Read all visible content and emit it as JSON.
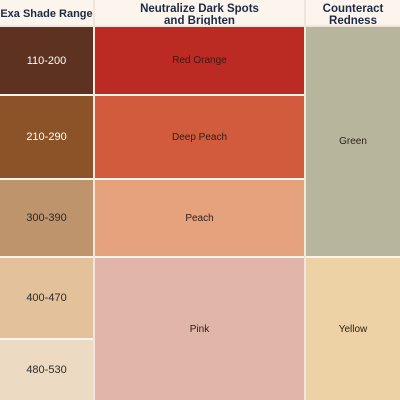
{
  "headers": {
    "shade": "Exa Shade Range",
    "neutralize": "Neutralize Dark Spots and Brighten",
    "counteract": "Counteract Redness"
  },
  "shade_ranges": [
    {
      "label": "110-200",
      "color": "#5d3220"
    },
    {
      "label": "210-290",
      "color": "#8b5327"
    },
    {
      "label": "300-390",
      "color": "#bd946b"
    },
    {
      "label": "400-470",
      "color": "#e3c29b"
    },
    {
      "label": "480-530",
      "color": "#ecdbc2"
    }
  ],
  "neutralize_correctors": [
    {
      "label": "Red Orange",
      "color": "#bc2a24"
    },
    {
      "label": "Deep Peach",
      "color": "#d15b3c"
    },
    {
      "label": "Peach",
      "color": "#e6a17d"
    },
    {
      "label": "Pink",
      "color": "#e1b5a8"
    }
  ],
  "redness_correctors": [
    {
      "label": "Green",
      "color": "#b7b59b"
    },
    {
      "label": "Yellow",
      "color": "#ecd2a4"
    }
  ]
}
